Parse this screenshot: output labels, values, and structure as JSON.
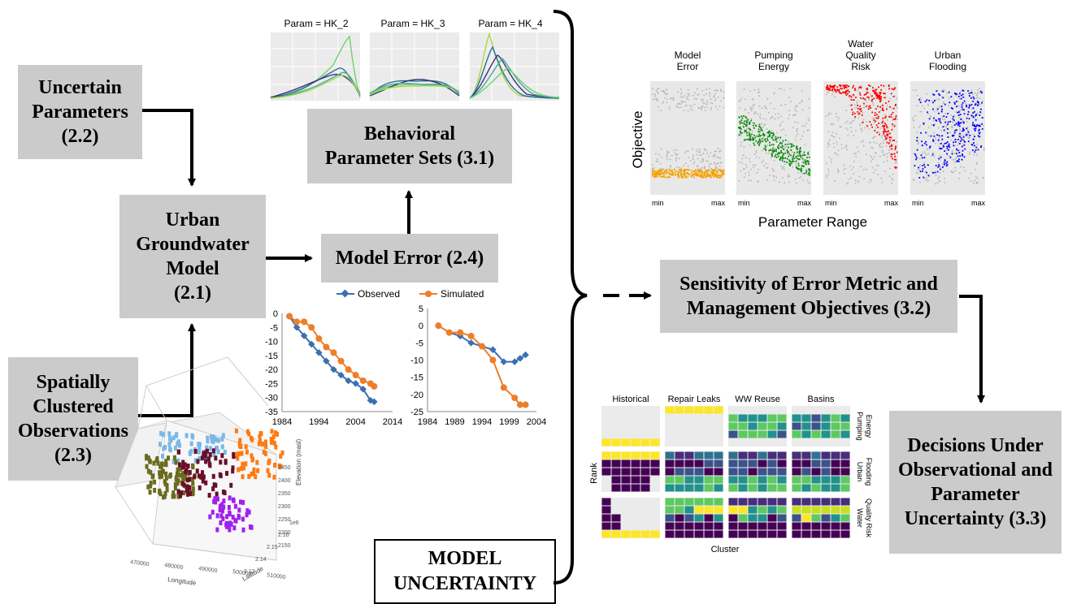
{
  "boxes": {
    "uncertain": "Uncertain\nParameters\n(2.2)",
    "urban_model": "Urban\nGroundwater\nModel\n(2.1)",
    "spatial": "Spatially\nClustered\nObservations\n(2.3)",
    "behavioral": "Behavioral\nParameter Sets (3.1)",
    "model_error": "Model Error (2.4)",
    "sensitivity": "Sensitivity of Error Metric and\nManagement Objectives (3.2)",
    "decisions": "Decisions Under\nObservational and\nParameter\nUncertainty (3.3)",
    "model_uncertainty": "MODEL\nUNCERTAINTY"
  },
  "density_plots": {
    "titles": [
      "Param = HK_2",
      "Param = HK_3",
      "Param = HK_4"
    ]
  },
  "scatter_panel": {
    "titles": [
      "Model\nError",
      "Pumping\nEnergy",
      "Water\nQuality\nRisk",
      "Urban\nFlooding"
    ],
    "ylabel": "Objective",
    "xlabel": "Parameter Range",
    "tick_min": "min",
    "tick_max": "max",
    "colors": [
      "#f5a200",
      "#0a8a0a",
      "#ff0000",
      "#0000ff"
    ]
  },
  "heatmap_panel": {
    "col_titles": [
      "Historical",
      "Repair Leaks",
      "WW Reuse",
      "Basins"
    ],
    "row_titles": [
      "Pumping\nEnergy",
      "Urban\nFlooding",
      "Water\nQuality Risk"
    ],
    "ylabel": "Rank",
    "xlabel": "Cluster"
  },
  "chart_data": [
    {
      "type": "line",
      "legend": [
        "Observed",
        "Simulated"
      ],
      "x": [
        1986,
        1988,
        1990,
        1992,
        1994,
        1996,
        1998,
        2000,
        2002,
        2004,
        2006,
        2008,
        2009
      ],
      "series": [
        {
          "name": "Observed",
          "values": [
            -1,
            -5,
            -8,
            -11,
            -14,
            -17,
            -20,
            -22,
            -24,
            -25,
            -27,
            -31,
            -31.5
          ]
        },
        {
          "name": "Simulated",
          "values": [
            -1,
            -3,
            -3,
            -5,
            -9,
            -12,
            -14,
            -17,
            -20,
            -22,
            -24,
            -25,
            -26
          ]
        }
      ],
      "xticks": [
        "1984",
        "1994",
        "2004",
        "2014"
      ],
      "yticks": [
        "0",
        "-5",
        "-10",
        "-15",
        "-20",
        "-25",
        "-30",
        "-35"
      ],
      "xlim": [
        1984,
        2014
      ],
      "ylim": [
        -35,
        0
      ]
    },
    {
      "type": "line",
      "x": [
        1986,
        1988,
        1990,
        1992,
        1994,
        1996,
        1998,
        2000,
        2001,
        2002
      ],
      "series": [
        {
          "name": "Observed",
          "values": [
            0,
            -2,
            -3,
            -5,
            -6,
            -7,
            -10.5,
            -10.5,
            -9.5,
            -8.5
          ]
        },
        {
          "name": "Simulated",
          "values": [
            0,
            -2,
            -2,
            -3,
            -6,
            -10,
            -18,
            -21,
            -23,
            -23
          ]
        }
      ],
      "xticks": [
        "1984",
        "1989",
        "1994",
        "1999",
        "2004"
      ],
      "yticks": [
        "5",
        "0",
        "-5",
        "-10",
        "-15",
        "-20",
        "-25"
      ],
      "xlim": [
        1984,
        2004
      ],
      "ylim": [
        -25,
        5
      ]
    }
  ],
  "scatter3d": {
    "axis_labels": [
      "Longitude",
      "Latitude",
      "Elevation (masl)"
    ],
    "x_ticks": [
      "470000",
      "480000",
      "490000",
      "500000",
      "510000"
    ],
    "y_ticks": [
      "2.13",
      "2.14",
      "2.15",
      "2.16",
      "1e6"
    ],
    "z_ticks": [
      "2450",
      "2400",
      "2350",
      "2300",
      "2250",
      "2200",
      "2150"
    ],
    "colors": [
      "#7ab8e6",
      "#6b6b1f",
      "#6a0f2a",
      "#ff7a10",
      "#a020f0"
    ]
  }
}
